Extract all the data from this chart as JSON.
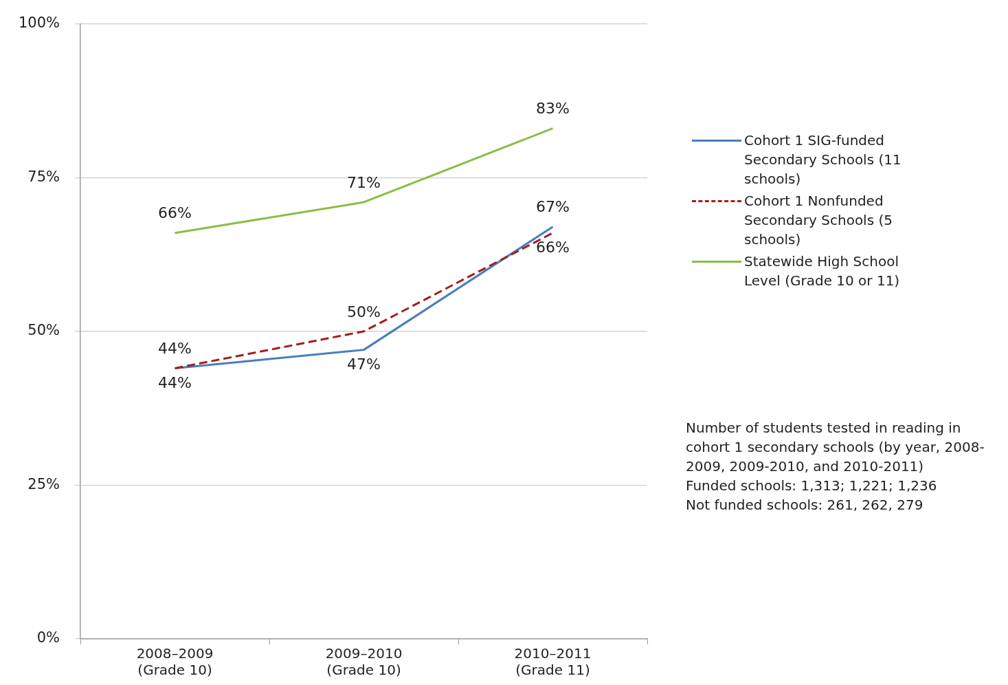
{
  "chart_data": {
    "type": "line",
    "categories": [
      "2008–2009\n(Grade 10)",
      "2009–2010\n(Grade 10)",
      "2010–2011\n(Grade 11)"
    ],
    "series": [
      {
        "name": "Cohort 1 SIG-funded Secondary Schools (11 schools)",
        "color": "#4a7ebb",
        "values": [
          44,
          47,
          67
        ],
        "value_labels": [
          "44%",
          "47%",
          "67%"
        ]
      },
      {
        "name": "Cohort 1 Nonfunded Secondary Schools (5 schools)",
        "color": "#a0201c",
        "line_style": "dashed",
        "values": [
          44,
          50,
          66
        ],
        "value_labels": [
          "44%",
          "50%",
          "66%"
        ]
      },
      {
        "name": "Statewide High School Level (Grade 10 or 11)",
        "color": "#8cbc44",
        "values": [
          66,
          71,
          83
        ],
        "value_labels": [
          "66%",
          "71%",
          "83%"
        ]
      }
    ],
    "ylim": [
      0,
      100
    ],
    "yticks": [
      {
        "value": 0,
        "label": "0%"
      },
      {
        "value": 25,
        "label": "25%"
      },
      {
        "value": 50,
        "label": "50%"
      },
      {
        "value": 75,
        "label": "75%"
      },
      {
        "value": 100,
        "label": "100%"
      }
    ],
    "grid": "y",
    "legend": "right",
    "marker": "none",
    "annotations": [
      "Number of students tested in reading in cohort 1 secondary schools (by year, 2008-2009, 2009-2010, and 2010-2011)\nFunded schools: 1,313; 1,221; 1,236\nNot funded schools: 261, 262, 279"
    ]
  }
}
